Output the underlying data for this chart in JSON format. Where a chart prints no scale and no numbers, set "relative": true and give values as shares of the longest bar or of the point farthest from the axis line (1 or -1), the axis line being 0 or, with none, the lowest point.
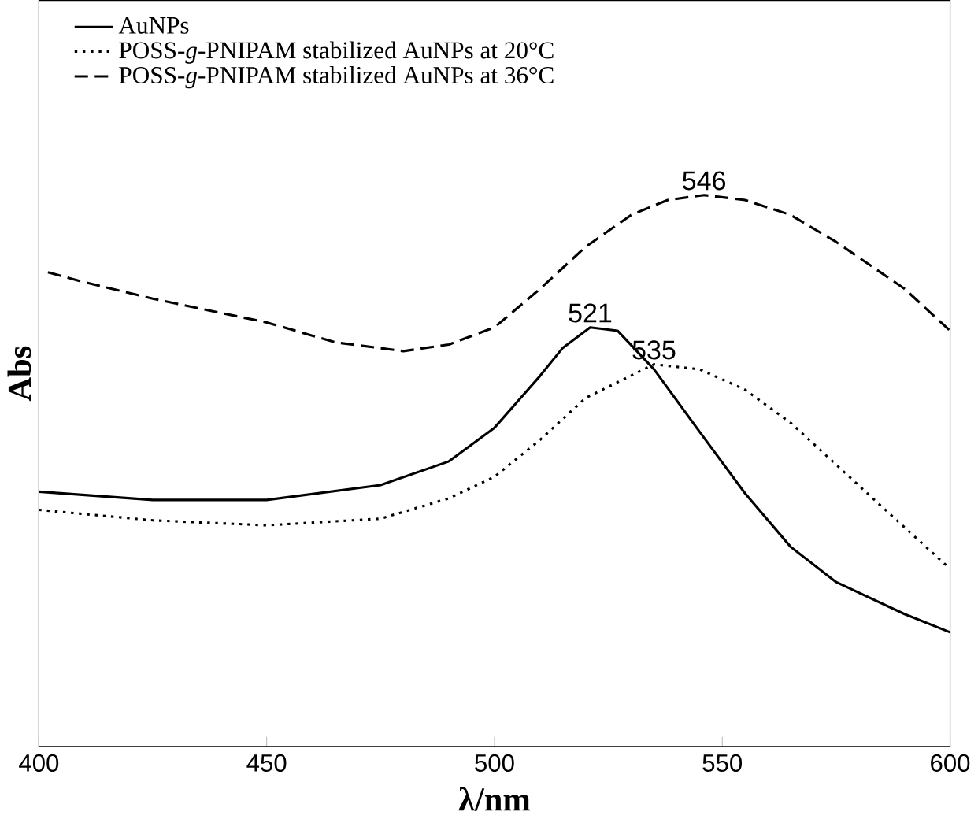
{
  "chart_data": {
    "type": "line",
    "relative": true,
    "xlabel": "λ/nm",
    "ylabel": "Abs",
    "xlim": [
      400,
      600
    ],
    "xticks": [
      400,
      450,
      500,
      550,
      600
    ],
    "legend": "top left",
    "grid": false,
    "marker": "none",
    "series": [
      {
        "name": "AuNPs",
        "color": "#000000",
        "line_style": "solid",
        "x": [
          400,
          425,
          450,
          475,
          490,
          500,
          510,
          515,
          521,
          527,
          535,
          545,
          555,
          565,
          575,
          590,
          600
        ],
        "values": [
          0.462,
          0.447,
          0.447,
          0.474,
          0.517,
          0.578,
          0.672,
          0.723,
          0.76,
          0.754,
          0.684,
          0.571,
          0.459,
          0.362,
          0.298,
          0.24,
          0.207
        ]
      },
      {
        "name": "POSS-*g*-PNIPAM stabilized AuNPs at 20°C",
        "color": "#000000",
        "line_style": "dotted",
        "x": [
          400,
          425,
          450,
          475,
          490,
          500,
          510,
          520,
          535,
          545,
          555,
          565,
          575,
          585,
          600
        ],
        "values": [
          0.429,
          0.41,
          0.401,
          0.413,
          0.45,
          0.489,
          0.556,
          0.632,
          0.693,
          0.684,
          0.647,
          0.587,
          0.511,
          0.435,
          0.322
        ]
      },
      {
        "name": "POSS-*g*-PNIPAM stabilized AuNPs at 36°C",
        "color": "#000000",
        "line_style": "dashed",
        "x": [
          402,
          410,
          425,
          450,
          465,
          480,
          490,
          500,
          510,
          520,
          530,
          538,
          546,
          555,
          565,
          575,
          590,
          600
        ],
        "values": [
          0.86,
          0.842,
          0.812,
          0.769,
          0.733,
          0.717,
          0.729,
          0.76,
          0.83,
          0.906,
          0.964,
          0.991,
          1.0,
          0.991,
          0.964,
          0.915,
          0.83,
          0.754
        ]
      }
    ],
    "annotations": [
      {
        "text": "521",
        "x": 521,
        "y": 0.76
      },
      {
        "text": "535",
        "x": 535,
        "y": 0.693
      },
      {
        "text": "546",
        "x": 546,
        "y": 1.0
      }
    ]
  }
}
